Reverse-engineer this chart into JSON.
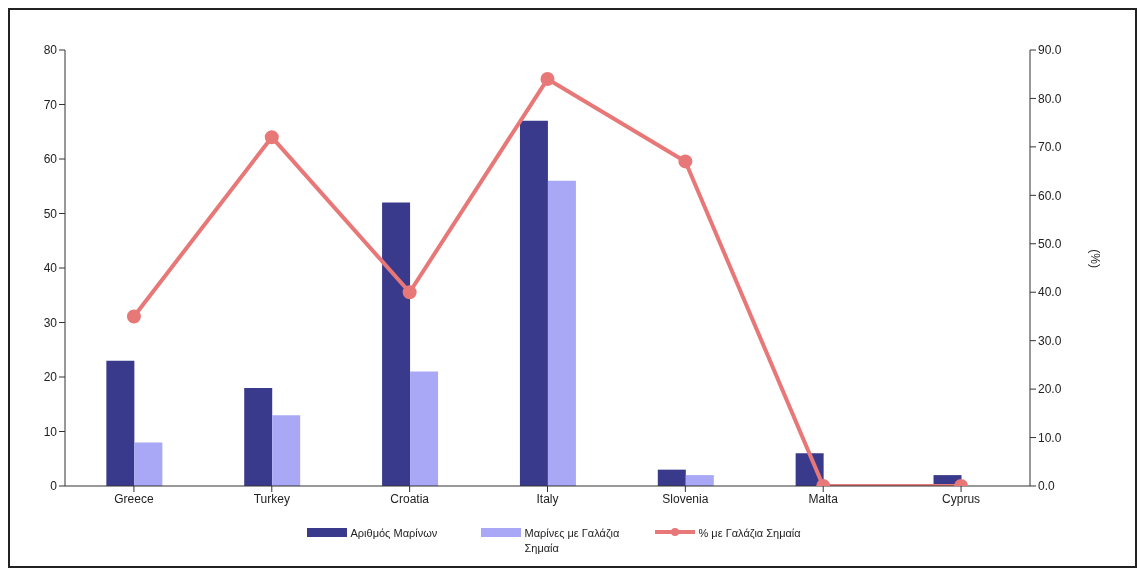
{
  "chart_data": {
    "type": "bar",
    "categories": [
      "Greece",
      "Turkey",
      "Croatia",
      "Italy",
      "Slovenia",
      "Malta",
      "Cyprus"
    ],
    "series": [
      {
        "name": "Αριθμός Μαρίνων",
        "color": "#3a3a8c",
        "values": [
          23,
          18,
          52,
          67,
          3,
          6,
          2
        ]
      },
      {
        "name": "Μαρίνες με Γαλάζια Σημαία",
        "color": "#a8a8f6",
        "values": [
          8,
          13,
          21,
          56,
          2,
          0,
          0
        ]
      },
      {
        "name": "% με Γαλάζια Σημαία",
        "type": "line",
        "axis": "y2",
        "color": "#e87878",
        "marker": "circle",
        "values": [
          35,
          72,
          40,
          84,
          67,
          0,
          0
        ]
      }
    ],
    "ylim": [
      0,
      80
    ],
    "yticks": [
      0,
      10,
      20,
      30,
      40,
      50,
      60,
      70,
      80
    ],
    "y2lim": [
      0,
      90
    ],
    "y2ticks": [
      {
        "value": 0,
        "label": "0.0"
      },
      {
        "value": 10,
        "label": "10.0"
      },
      {
        "value": 20,
        "label": "20.0"
      },
      {
        "value": 30,
        "label": "30.0"
      },
      {
        "value": 40,
        "label": "40.0"
      },
      {
        "value": 50,
        "label": "50.0"
      },
      {
        "value": 60,
        "label": "60.0"
      },
      {
        "value": 70,
        "label": "70.0"
      },
      {
        "value": 80,
        "label": "80.0"
      },
      {
        "value": 90,
        "label": "90.0"
      }
    ],
    "y2label": "(%)",
    "grid": false,
    "legend": "bottom"
  }
}
